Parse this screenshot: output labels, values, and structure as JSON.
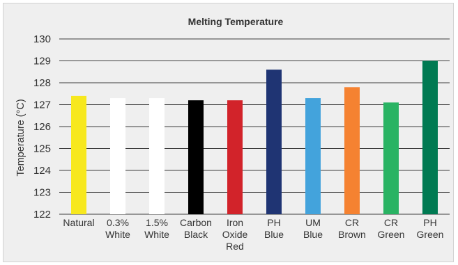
{
  "chart_data": {
    "type": "bar",
    "title": "Melting Temperature",
    "ylabel": "Temperature (°C)",
    "xlabel": "",
    "ylim": [
      122,
      130
    ],
    "yticks": [
      122,
      123,
      124,
      125,
      126,
      127,
      128,
      129,
      130
    ],
    "grid": true,
    "categories": [
      [
        "Natural"
      ],
      [
        "0.3%",
        "White"
      ],
      [
        "1.5%",
        "White"
      ],
      [
        "Carbon",
        "Black"
      ],
      [
        "Iron",
        "Oxide",
        "Red"
      ],
      [
        "PH",
        "Blue"
      ],
      [
        "UM",
        "Blue"
      ],
      [
        "CR",
        "Brown"
      ],
      [
        "CR",
        "Green"
      ],
      [
        "PH",
        "Green"
      ]
    ],
    "values": [
      127.4,
      127.3,
      127.3,
      127.2,
      127.2,
      128.6,
      127.3,
      127.8,
      127.1,
      129.0
    ],
    "colors": [
      "#f7e81e",
      "#ffffff",
      "#ffffff",
      "#000000",
      "#d2232a",
      "#1f3473",
      "#43a3dc",
      "#f58231",
      "#29b363",
      "#007a52"
    ]
  }
}
